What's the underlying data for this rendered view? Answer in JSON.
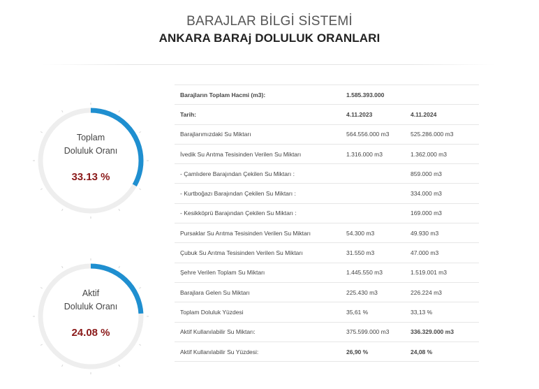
{
  "header": {
    "system_title": "BARAJLAR BİLGİ SİSTEMİ",
    "page_title": "ANKARA BARAj DOLULUK ORANLARI"
  },
  "colors": {
    "gauge_fill": "#1f8fd0",
    "gauge_track": "#eeeeee",
    "highlight_red": "#b01e1e",
    "gauge_value": "#8b1a1a"
  },
  "gauges": [
    {
      "label_line1": "Toplam",
      "label_line2": "Doluluk Oranı",
      "value_text": "33.13 %",
      "fraction": 0.3313
    },
    {
      "label_line1": "Aktif",
      "label_line2": "Doluluk Oranı",
      "value_text": "24.08 %",
      "fraction": 0.2408
    }
  ],
  "table": {
    "total_volume_label": "Barajların Toplam Hacmi (m3):",
    "total_volume_value": "1.585.393.000",
    "date_label": "Tarih:",
    "date_1": "4.11.2023",
    "date_2": "4.11.2024",
    "rows": [
      {
        "label": "Barajlarımızdaki Su Miktarı",
        "v1": "564.556.000 m3",
        "v2": "525.286.000 m3"
      },
      {
        "label": "İvedik Su Arıtma Tesisinden Verilen Su Miktarı",
        "v1": "1.316.000 m3",
        "v2": "1.362.000 m3"
      },
      {
        "label": "- Çamlıdere Barajından Çekilen Su Miktarı :",
        "v1": "",
        "v2": "859.000 m3"
      },
      {
        "label": "- Kurtboğazı Barajından Çekilen Su Miktarı :",
        "v1": "",
        "v2": "334.000 m3"
      },
      {
        "label": "- Kesikköprü Barajından Çekilen Su Miktarı :",
        "v1": "",
        "v2": "169.000 m3"
      },
      {
        "label": "Pursaklar Su Arıtma Tesisinden Verilen Su Miktarı",
        "v1": "54.300 m3",
        "v2": "49.930 m3"
      },
      {
        "label": "Çubuk Su Arıtma Tesisinden Verilen Su Miktarı",
        "v1": "31.550 m3",
        "v2": "47.000 m3"
      },
      {
        "label": "Şehre Verilen Toplam Su Miktarı",
        "v1": "1.445.550 m3",
        "v2": "1.519.001 m3"
      },
      {
        "label": "Barajlara Gelen Su Miktarı",
        "v1": "225.430 m3",
        "v2": "226.224 m3"
      },
      {
        "label": "Toplam Doluluk Yüzdesi",
        "v1": "35,61 %",
        "v2": "33,13 %"
      },
      {
        "label": "Aktif Kullanılabilir Su Miktarı:",
        "v1": "375.599.000 m3",
        "v2": "336.329.000 m3"
      },
      {
        "label": "Aktif Kullanılabilir Su Yüzdesi:",
        "v1": "26,90 %",
        "v2": "24,08 %"
      }
    ]
  }
}
